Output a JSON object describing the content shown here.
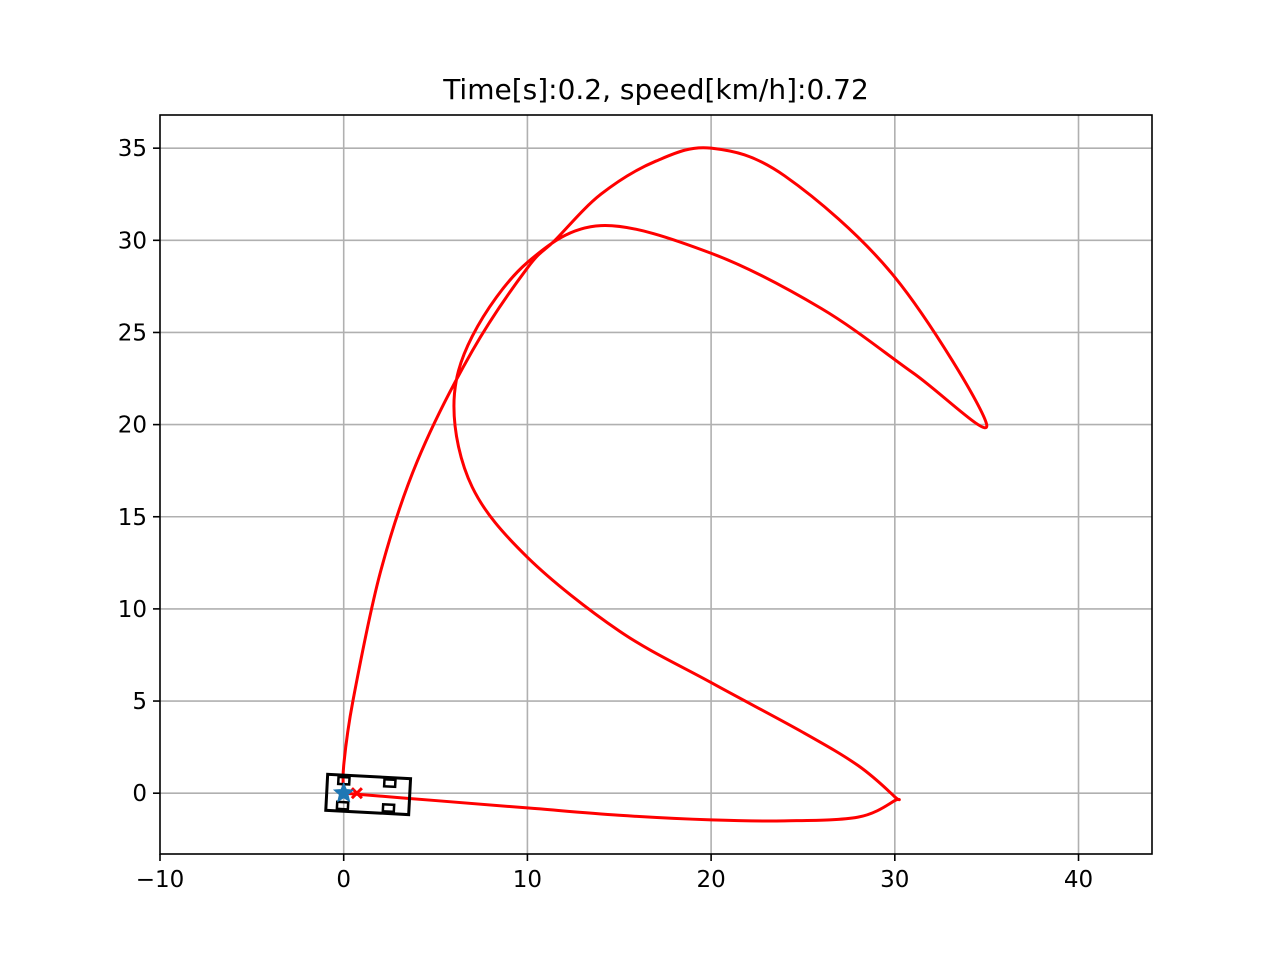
{
  "chart_data": {
    "type": "line",
    "title": "Time[s]:0.2, speed[km/h]:0.72",
    "xlabel": "",
    "ylabel": "",
    "xlim": [
      -10,
      44
    ],
    "ylim": [
      -3.3,
      36.8
    ],
    "xticks": [
      -10,
      0,
      10,
      20,
      30,
      40
    ],
    "xtick_labels": [
      "−10",
      "0",
      "10",
      "20",
      "30",
      "40"
    ],
    "yticks": [
      0,
      5,
      10,
      15,
      20,
      25,
      30,
      35
    ],
    "ytick_labels": [
      "0",
      "5",
      "10",
      "15",
      "20",
      "25",
      "30",
      "35"
    ],
    "grid": true,
    "colors": {
      "path": "#ff0000",
      "vehicle": "#000000",
      "current_position": "#1f77b4",
      "grid": "#b0b0b0"
    },
    "series": [
      {
        "x": [
          0,
          5,
          10,
          15,
          20,
          24,
          28,
          30,
          30,
          28,
          25,
          20,
          15,
          10,
          7,
          6,
          7,
          10,
          14,
          20,
          26,
          31,
          35,
          30,
          24,
          20,
          17,
          14,
          11.5,
          10,
          7,
          4,
          2,
          0.5,
          0,
          0
        ],
        "y": [
          0,
          -0.4,
          -0.8,
          -1.2,
          -1.45,
          -1.5,
          -1.3,
          -0.4,
          -0.2,
          1.5,
          3.3,
          6,
          8.8,
          12.8,
          16.6,
          21,
          24.8,
          28.8,
          30.8,
          29.3,
          26.3,
          22.8,
          20,
          28,
          33.5,
          35,
          34.3,
          32.5,
          30,
          28.5,
          24,
          18,
          12,
          5,
          1.5,
          0
        ]
      }
    ],
    "vehicle": {
      "x": 0,
      "y": 0,
      "heading_deg": -3,
      "icon": "car-outline-icon"
    },
    "current_position": {
      "x": 0,
      "y": 0,
      "marker": "star"
    },
    "target_point": {
      "x": 0.5,
      "y": 0,
      "marker": "x"
    }
  }
}
